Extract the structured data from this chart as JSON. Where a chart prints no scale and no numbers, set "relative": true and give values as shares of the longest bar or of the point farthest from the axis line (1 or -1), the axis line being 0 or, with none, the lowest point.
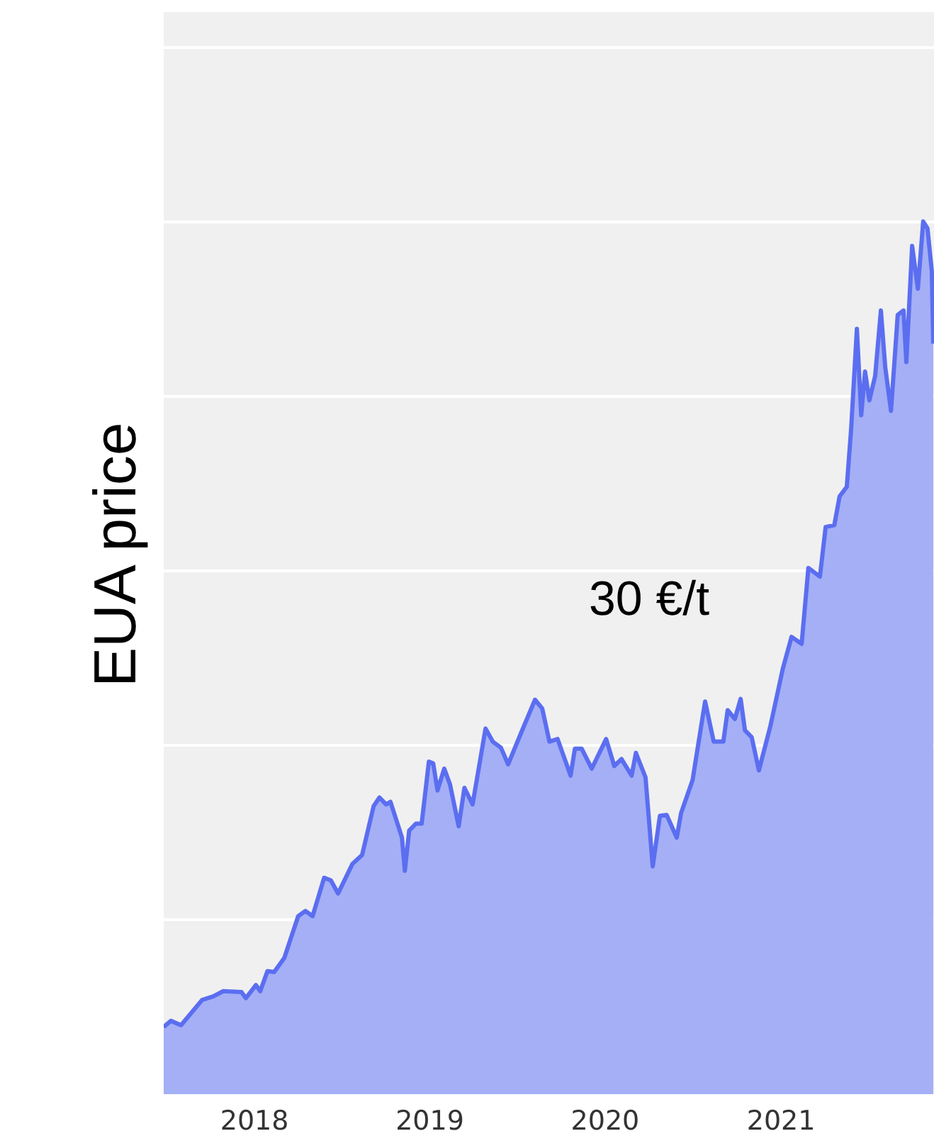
{
  "chart_data": {
    "type": "area",
    "ylabel": "EUA price",
    "relative": true,
    "grid": "y",
    "annotations": [
      "30 €/t"
    ],
    "xlim": [
      "2017-06-26",
      "2021-11-17"
    ],
    "xticks": [
      {
        "value": "2018-01-01",
        "label": "2018"
      },
      {
        "value": "2019-01-01",
        "label": "2019"
      },
      {
        "value": "2020-01-01",
        "label": "2020"
      },
      {
        "value": "2021-01-01",
        "label": "2021"
      }
    ],
    "x": [
      "2017-06-26",
      "2017-07-11",
      "2017-08-01",
      "2017-09-14",
      "2017-10-07",
      "2017-10-28",
      "2017-12-05",
      "2017-12-14",
      "2018-01-04",
      "2018-01-13",
      "2018-01-28",
      "2018-02-11",
      "2018-03-04",
      "2018-04-02",
      "2018-04-17",
      "2018-05-02",
      "2018-05-26",
      "2018-06-09",
      "2018-06-24",
      "2018-07-24",
      "2018-08-13",
      "2018-09-06",
      "2018-09-18",
      "2018-10-02",
      "2018-10-11",
      "2018-11-04",
      "2018-11-10",
      "2018-11-19",
      "2018-12-03",
      "2018-12-15",
      "2018-12-30",
      "2019-01-08",
      "2019-01-17",
      "2019-01-31",
      "2019-02-12",
      "2019-03-02",
      "2019-03-14",
      "2019-03-31",
      "2019-04-27",
      "2019-05-12",
      "2019-05-29",
      "2019-06-13",
      "2019-07-10",
      "2019-08-08",
      "2019-08-23",
      "2019-09-07",
      "2019-09-24",
      "2019-10-21",
      "2019-10-30",
      "2019-11-13",
      "2019-12-04",
      "2020-01-03",
      "2020-01-20",
      "2020-02-04",
      "2020-02-25",
      "2020-03-05",
      "2020-03-25",
      "2020-04-09",
      "2020-04-24",
      "2020-05-08",
      "2020-05-29",
      "2020-06-07",
      "2020-07-01",
      "2020-07-27",
      "2020-08-14",
      "2020-09-03",
      "2020-09-12",
      "2020-09-27",
      "2020-10-09",
      "2020-10-18",
      "2020-11-01",
      "2020-11-16",
      "2020-12-10",
      "2021-01-05",
      "2021-01-23",
      "2021-02-13",
      "2021-02-27",
      "2021-03-23",
      "2021-04-04",
      "2021-04-22",
      "2021-05-03",
      "2021-05-18",
      "2021-05-27",
      "2021-06-08",
      "2021-06-17",
      "2021-06-25",
      "2021-07-04",
      "2021-07-16",
      "2021-07-28",
      "2021-08-06",
      "2021-08-18",
      "2021-09-01",
      "2021-09-13",
      "2021-09-19",
      "2021-10-01",
      "2021-10-13",
      "2021-10-24",
      "2021-11-02",
      "2021-11-11",
      "2021-11-14"
    ],
    "series": [
      {
        "color": "#5b6ef0",
        "values": [
          0.077,
          0.084,
          0.079,
          0.108,
          0.112,
          0.118,
          0.117,
          0.11,
          0.125,
          0.118,
          0.141,
          0.14,
          0.156,
          0.204,
          0.21,
          0.204,
          0.248,
          0.245,
          0.23,
          0.264,
          0.274,
          0.33,
          0.34,
          0.332,
          0.335,
          0.294,
          0.256,
          0.302,
          0.31,
          0.31,
          0.381,
          0.379,
          0.348,
          0.373,
          0.355,
          0.307,
          0.351,
          0.332,
          0.419,
          0.404,
          0.397,
          0.378,
          0.414,
          0.452,
          0.442,
          0.404,
          0.407,
          0.365,
          0.396,
          0.396,
          0.373,
          0.407,
          0.376,
          0.384,
          0.365,
          0.391,
          0.363,
          0.261,
          0.319,
          0.32,
          0.294,
          0.322,
          0.36,
          0.45,
          0.404,
          0.404,
          0.44,
          0.43,
          0.453,
          0.417,
          0.409,
          0.371,
          0.422,
          0.488,
          0.524,
          0.516,
          0.603,
          0.593,
          0.65,
          0.652,
          0.685,
          0.696,
          0.762,
          0.877,
          0.778,
          0.828,
          0.795,
          0.823,
          0.898,
          0.833,
          0.783,
          0.893,
          0.898,
          0.839,
          0.972,
          0.923,
          1.0,
          0.992,
          0.943,
          0.86
        ]
      }
    ]
  }
}
